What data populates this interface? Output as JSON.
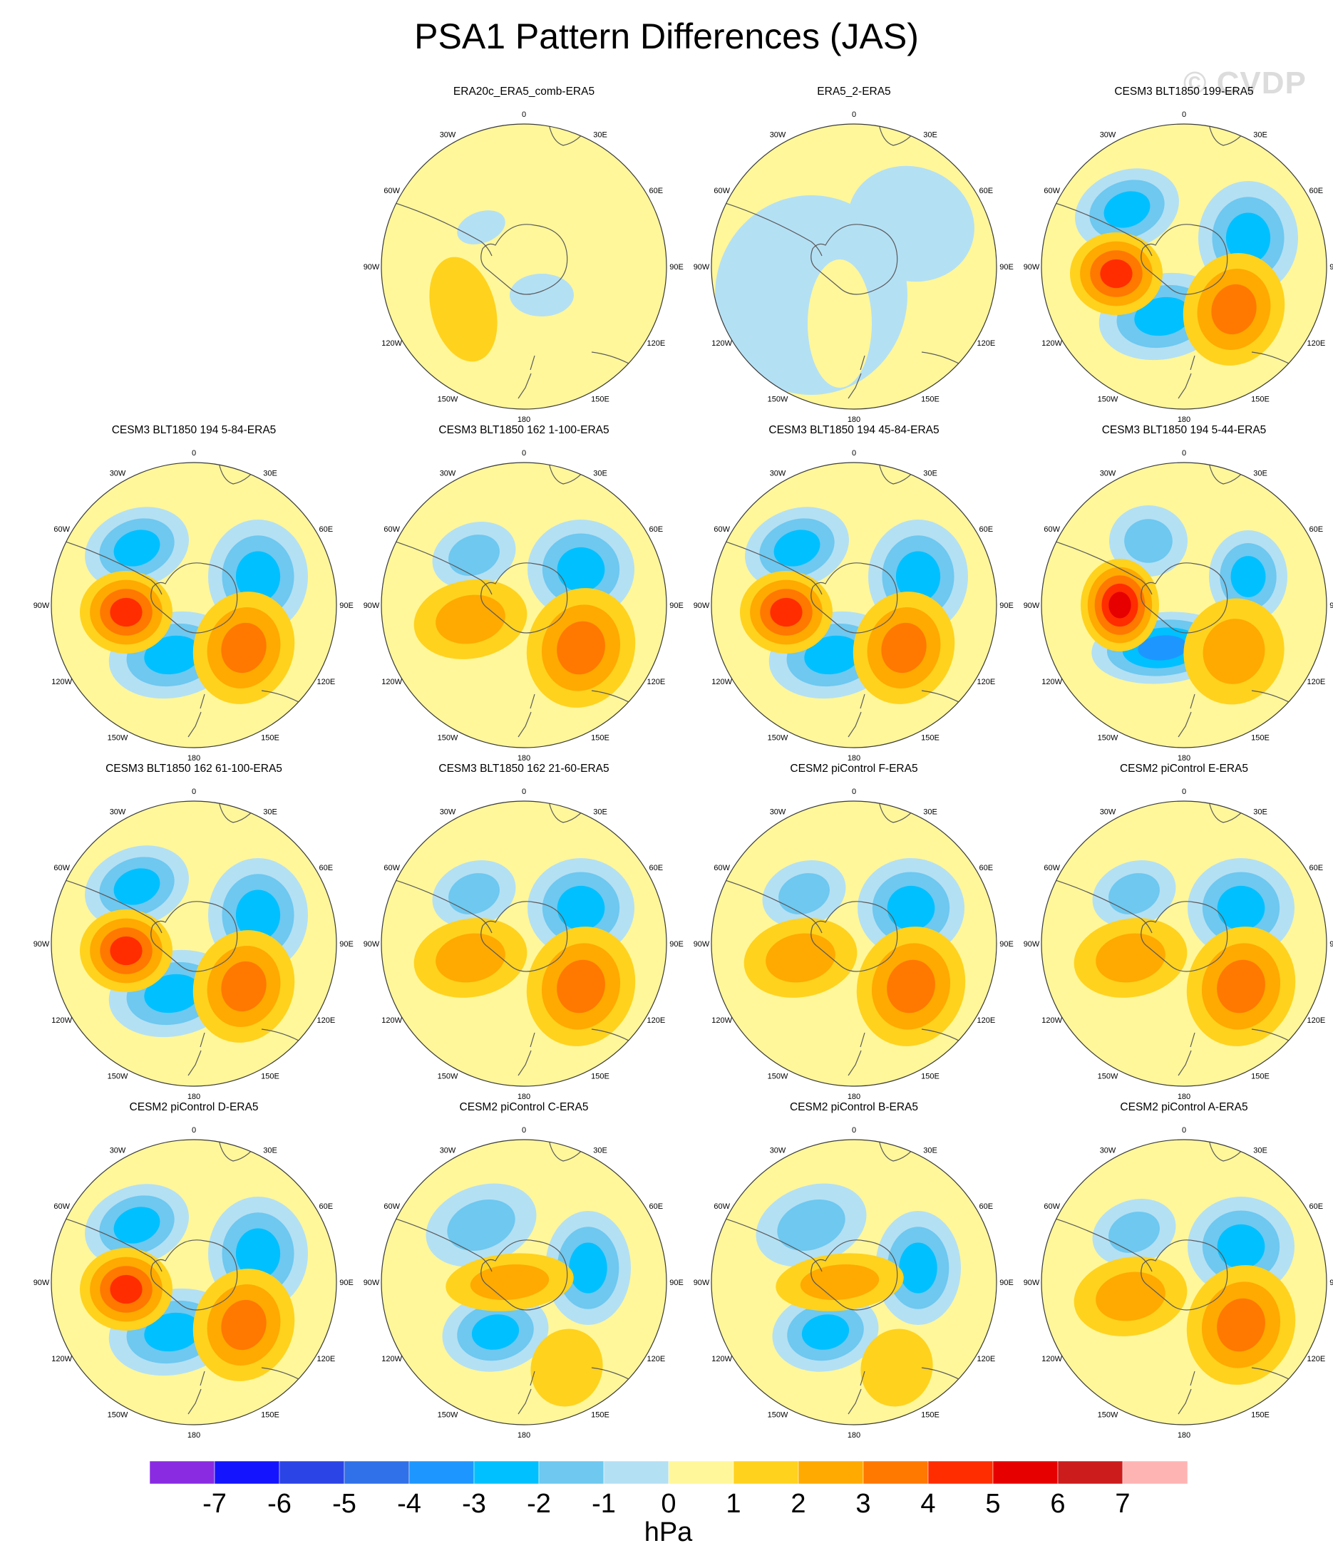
{
  "page": {
    "title": "PSA1 Pattern Differences (JAS)",
    "watermark": "© CVDP"
  },
  "colors": {
    "land_outline": "#5a5a5a",
    "ring": "#3a3a3a"
  },
  "map": {
    "projection": "polar-stereographic-south",
    "longitude_labels": [
      "0",
      "30E",
      "60E",
      "90E",
      "120E",
      "150E",
      "180",
      "150W",
      "120W",
      "90W",
      "60W",
      "30W"
    ]
  },
  "panels": [
    {
      "title": "ERA20c_ERA5_comb-ERA5",
      "pattern": "weak"
    },
    {
      "title": "ERA5_2-ERA5",
      "pattern": "neutral"
    },
    {
      "title": "CESM3 BLT1850 199-ERA5",
      "pattern": "strong"
    },
    {
      "title": "CESM3 BLT1850 194 5-84-ERA5",
      "pattern": "strong"
    },
    {
      "title": "CESM3 BLT1850 162 1-100-ERA5",
      "pattern": "medium"
    },
    {
      "title": "CESM3 BLT1850 194 45-84-ERA5",
      "pattern": "strong"
    },
    {
      "title": "CESM3 BLT1850 194 5-44-ERA5",
      "pattern": "strongest"
    },
    {
      "title": "CESM3 BLT1850 162 61-100-ERA5",
      "pattern": "strong"
    },
    {
      "title": "CESM3 BLT1850 162 21-60-ERA5",
      "pattern": "medium"
    },
    {
      "title": "CESM2 piControl F-ERA5",
      "pattern": "medium"
    },
    {
      "title": "CESM2 piControl E-ERA5",
      "pattern": "medium"
    },
    {
      "title": "CESM2 piControl D-ERA5",
      "pattern": "strong"
    },
    {
      "title": "CESM2 piControl C-ERA5",
      "pattern": "mixed"
    },
    {
      "title": "CESM2 piControl B-ERA5",
      "pattern": "mixed"
    },
    {
      "title": "CESM2 piControl A-ERA5",
      "pattern": "medium"
    }
  ],
  "colorbar": {
    "unit": "hPa",
    "levels": [
      -7,
      -6,
      -5,
      -4,
      -3,
      -2,
      -1,
      0,
      1,
      2,
      3,
      4,
      5,
      6,
      7
    ],
    "colors": [
      "#8a2be2",
      "#1414ff",
      "#2b44e6",
      "#3070e8",
      "#1e96ff",
      "#00c0ff",
      "#6ec8f0",
      "#b4e0f4",
      "#fff79a",
      "#ffd21e",
      "#ffaa00",
      "#ff7800",
      "#ff2d00",
      "#e60000",
      "#cc1c1c",
      "#ffb4b4"
    ]
  }
}
